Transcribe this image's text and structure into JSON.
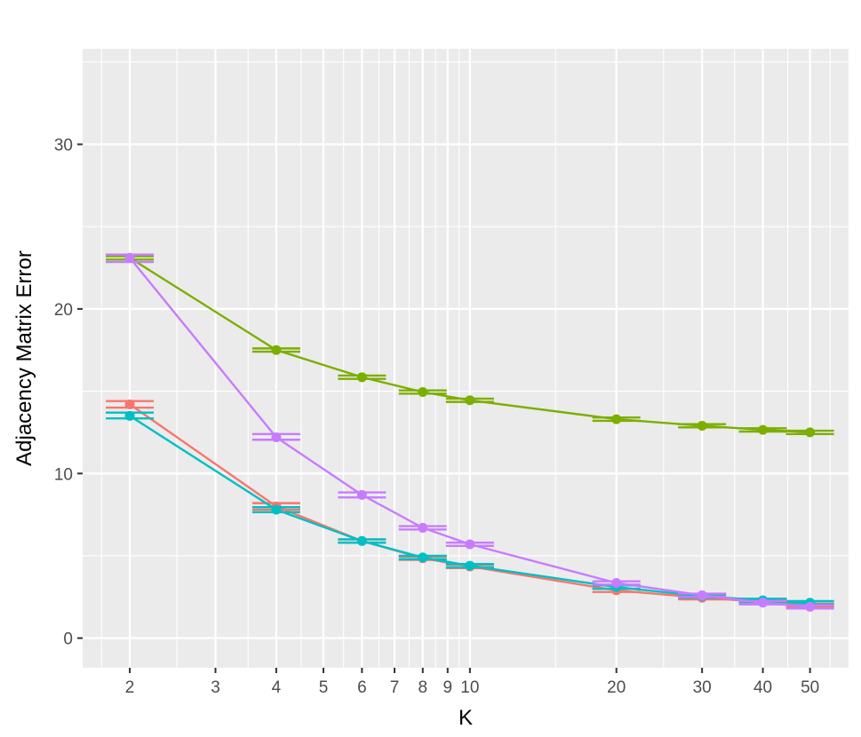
{
  "chart_data": {
    "type": "line",
    "title": "",
    "xlabel": "K",
    "ylabel": "Adjacency Matrix Error",
    "x_scale": "log",
    "x": [
      2,
      4,
      6,
      8,
      10,
      20,
      30,
      40,
      50
    ],
    "xlim": [
      1.6,
      60
    ],
    "ylim": [
      -1.8,
      35.8
    ],
    "x_major_ticks": [
      2,
      3,
      4,
      5,
      6,
      7,
      8,
      9,
      10,
      20,
      30,
      40,
      50
    ],
    "x_minor_ticks": [
      1.75,
      2.5,
      3.5,
      4.5,
      5.5,
      6.5,
      7.5,
      8.5,
      9.5,
      15,
      25,
      35,
      45,
      55
    ],
    "x_tick_labels": [
      "2",
      "3",
      "4",
      "5",
      "6",
      "7",
      "8",
      "9",
      "10",
      "20",
      "30",
      "40",
      "50"
    ],
    "y_major_ticks": [
      0,
      10,
      20,
      30
    ],
    "y_minor_ticks": [
      5,
      15,
      25,
      35
    ],
    "y_tick_labels": [
      "0",
      "10",
      "20",
      "30"
    ],
    "grid": true,
    "legend": "none",
    "background": "#ebebeb",
    "gridline_color": "#ffffff",
    "series": [
      {
        "color": "#f8766d",
        "values": [
          14.2,
          8.0,
          5.9,
          4.85,
          4.35,
          2.9,
          2.45,
          2.2,
          2.0
        ],
        "err_low": [
          14.0,
          7.8,
          5.8,
          4.75,
          4.25,
          2.8,
          2.35,
          2.1,
          1.9
        ],
        "err_high": [
          14.4,
          8.2,
          6.0,
          4.95,
          4.45,
          3.0,
          2.55,
          2.3,
          2.1
        ]
      },
      {
        "color": "#7cae00",
        "values": [
          23.1,
          17.5,
          15.85,
          14.95,
          14.45,
          13.3,
          12.9,
          12.65,
          12.5
        ],
        "err_low": [
          23.0,
          17.4,
          15.75,
          14.85,
          14.35,
          13.2,
          12.8,
          12.55,
          12.4
        ],
        "err_high": [
          23.2,
          17.6,
          15.95,
          15.05,
          14.55,
          13.4,
          13.0,
          12.75,
          12.6
        ]
      },
      {
        "color": "#00bfc4",
        "values": [
          13.5,
          7.8,
          5.9,
          4.9,
          4.4,
          3.1,
          2.55,
          2.3,
          2.15
        ],
        "err_low": [
          13.35,
          7.65,
          5.8,
          4.8,
          4.3,
          3.0,
          2.45,
          2.2,
          2.05
        ],
        "err_high": [
          13.7,
          7.95,
          6.0,
          5.0,
          4.5,
          3.2,
          2.65,
          2.4,
          2.25
        ]
      },
      {
        "color": "#c77cff",
        "values": [
          23.1,
          12.2,
          8.7,
          6.7,
          5.7,
          3.35,
          2.6,
          2.15,
          1.9
        ],
        "err_low": [
          22.85,
          12.05,
          8.55,
          6.6,
          5.6,
          3.25,
          2.5,
          2.05,
          1.8
        ],
        "err_high": [
          23.3,
          12.4,
          8.85,
          6.8,
          5.8,
          3.45,
          2.7,
          2.25,
          2.0
        ]
      }
    ]
  }
}
